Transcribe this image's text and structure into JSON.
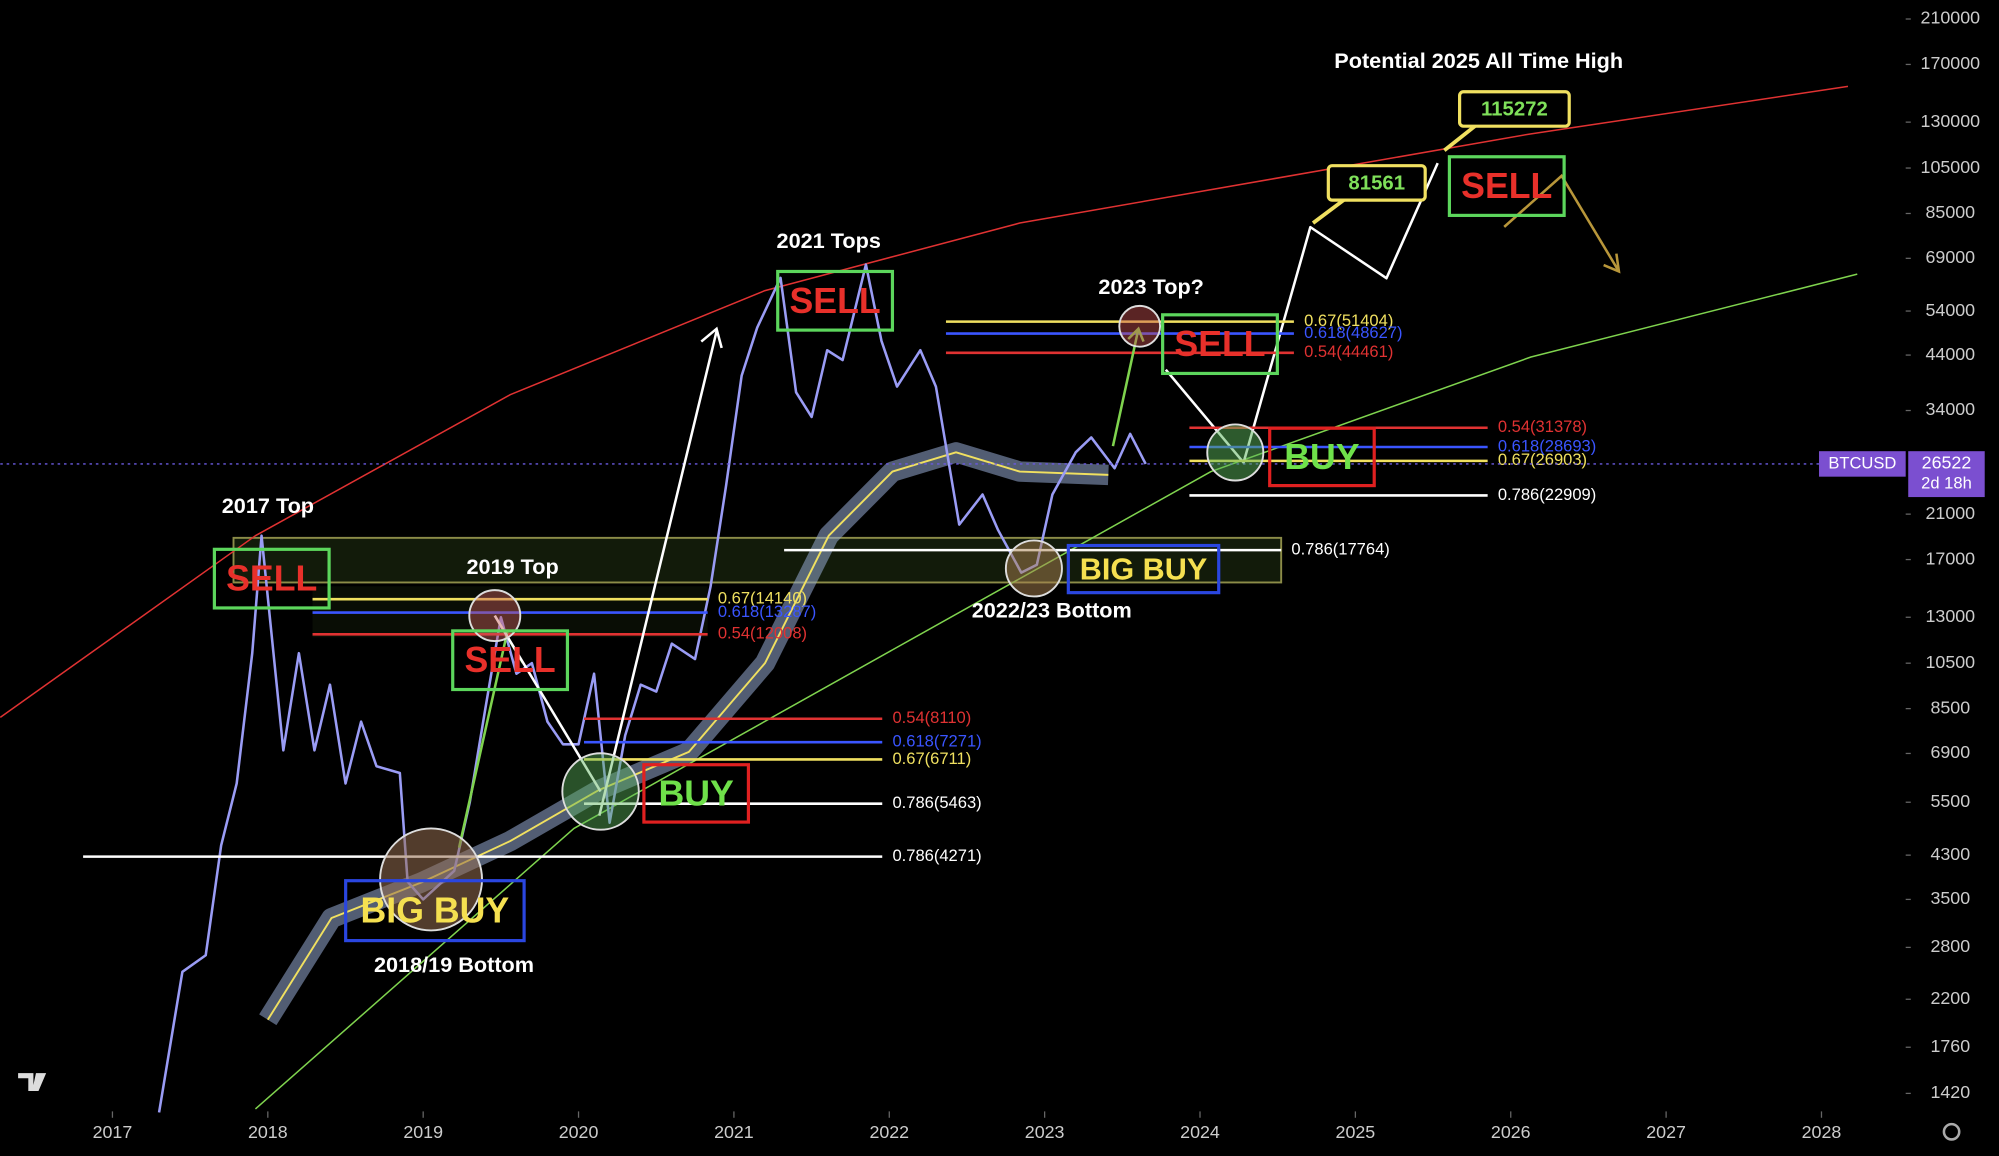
{
  "chart_data": {
    "type": "line",
    "log_scale": true,
    "xlim": [
      2016.278,
      2028.542
    ],
    "ylim": [
      1306,
      229400
    ],
    "xticks": [
      2017,
      2018,
      2019,
      2020,
      2021,
      2022,
      2023,
      2024,
      2025,
      2026,
      2027,
      2028
    ],
    "yticks": [
      1420,
      1760,
      2200,
      2800,
      3500,
      4300,
      5500,
      6900,
      8500,
      10500,
      13000,
      17000,
      21000,
      34000,
      44000,
      54000,
      69000,
      85000,
      105000,
      130000,
      170000,
      210000
    ],
    "series": [
      {
        "color": "#e03232",
        "x": [
          2016.278,
          2017.92,
          2019.56,
          2021.2,
          2022.84,
          2024.48,
          2026.12,
          2028.17
        ],
        "values": [
          8157,
          19000,
          36600,
          59400,
          81300,
          100000,
          123000,
          153500
        ]
      },
      {
        "color": "#7fd34e",
        "x": [
          2017.92,
          2019.97,
          2022.02,
          2024.07,
          2026.13,
          2028.23
        ],
        "values": [
          1321,
          4870,
          11170,
          25600,
          43600,
          64100
        ]
      },
      {
        "color": "#f0e060",
        "x": [
          2018.0,
          2018.41,
          2018.99,
          2019.56,
          2020.13,
          2020.71,
          2021.2,
          2021.61,
          2022.02,
          2022.43,
          2022.84,
          2023.41
        ],
        "values": [
          2000,
          3210,
          3790,
          4590,
          5820,
          6950,
          10500,
          19000,
          25600,
          28000,
          25600,
          25200
        ]
      },
      {
        "color": "#9a9cf5",
        "x": [
          2017.3,
          2017.45,
          2017.6,
          2017.7,
          2017.8,
          2017.9,
          2017.96,
          2018.05,
          2018.1,
          2018.2,
          2018.3,
          2018.4,
          2018.5,
          2018.6,
          2018.7,
          2018.85,
          2018.9,
          2019.0,
          2019.2,
          2019.3,
          2019.4,
          2019.5,
          2019.6,
          2019.7,
          2019.8,
          2019.9,
          2020.0,
          2020.1,
          2020.2,
          2020.3,
          2020.4,
          2020.5,
          2020.6,
          2020.75,
          2020.85,
          2020.95,
          2021.05,
          2021.15,
          2021.3,
          2021.4,
          2021.5,
          2021.6,
          2021.7,
          2021.85,
          2021.95,
          2022.05,
          2022.2,
          2022.3,
          2022.45,
          2022.6,
          2022.7,
          2022.85,
          2022.95,
          2023.05,
          2023.2,
          2023.3,
          2023.45,
          2023.55,
          2023.65
        ],
        "values": [
          1300,
          2500,
          2700,
          4500,
          6000,
          11000,
          19000,
          10000,
          7000,
          11000,
          7000,
          9500,
          6000,
          8000,
          6500,
          6300,
          3800,
          3500,
          4000,
          5500,
          8500,
          13000,
          10000,
          10500,
          8000,
          7200,
          7200,
          10000,
          5000,
          7500,
          9500,
          9200,
          11500,
          10700,
          15000,
          24000,
          40000,
          50000,
          63000,
          37000,
          33000,
          45000,
          43000,
          67000,
          47000,
          38000,
          45000,
          38000,
          20000,
          23000,
          19500,
          16000,
          16600,
          23000,
          28000,
          30000,
          26000,
          30500,
          26522
        ]
      },
      {
        "color": "#ffffff",
        "x": [
          2023.78,
          2024.28,
          2024.71,
          2025.2,
          2025.53
        ],
        "values": [
          41100,
          26700,
          79800,
          62900,
          107400
        ]
      }
    ],
    "levels": [
      {
        "value": 14140,
        "label": "0.67(14140)",
        "color": "#f0e060"
      },
      {
        "value": 13287,
        "label": "0.618(13287)",
        "color": "#3a55ff"
      },
      {
        "value": 12008,
        "label": "0.54(12008)",
        "color": "#e03232"
      },
      {
        "value": 8110,
        "label": "0.54(8110)",
        "color": "#e03232"
      },
      {
        "value": 7271,
        "label": "0.618(7271)",
        "color": "#3a55ff"
      },
      {
        "value": 6711,
        "label": "0.67(6711)",
        "color": "#f0e060"
      },
      {
        "value": 5463,
        "label": "0.786(5463)",
        "color": "#ffffff"
      },
      {
        "value": 4271,
        "label": "0.786(4271)",
        "color": "#ffffff"
      },
      {
        "value": 17764,
        "label": "0.786(17764)",
        "color": "#ffffff"
      },
      {
        "value": 51404,
        "label": "0.67(51404)",
        "color": "#f0e060"
      },
      {
        "value": 48627,
        "label": "0.618(48627)",
        "color": "#3a55ff"
      },
      {
        "value": 44461,
        "label": "0.54(44461)",
        "color": "#e03232"
      },
      {
        "value": 31378,
        "label": "0.54(31378)",
        "color": "#e03232"
      },
      {
        "value": 28693,
        "label": "0.618(28693)",
        "color": "#3a55ff"
      },
      {
        "value": 26903,
        "label": "0.67(26903)",
        "color": "#f0e060"
      },
      {
        "value": 22909,
        "label": "0.786(22909)",
        "color": "#ffffff"
      }
    ],
    "annotations": [
      "2017 Top",
      "2019 Top",
      "2021 Tops",
      "2023 Top?",
      "2018/19 Bottom",
      "2022/23 Bottom",
      "Potential 2025 All Time High"
    ],
    "signals": [
      {
        "text": "SELL",
        "color": "#e8302a",
        "border": "#5cd65c"
      },
      {
        "text": "SELL",
        "color": "#e8302a",
        "border": "#5cd65c"
      },
      {
        "text": "SELL",
        "color": "#e8302a",
        "border": "#5cd65c"
      },
      {
        "text": "SELL",
        "color": "#e8302a",
        "border": "#5cd65c"
      },
      {
        "text": "SELL",
        "color": "#e8302a",
        "border": "#5cd65c"
      },
      {
        "text": "BUY",
        "color": "#6fe04a",
        "border": "#e02020"
      },
      {
        "text": "BUY",
        "color": "#6fe04a",
        "border": "#e02020"
      },
      {
        "text": "BIG BUY",
        "color": "#f5e050",
        "border": "#2a46e0"
      },
      {
        "text": "BIG BUY",
        "color": "#f5e050",
        "border": "#2a46e0"
      }
    ],
    "callouts": [
      {
        "value": 115272
      },
      {
        "value": 81561
      }
    ],
    "price_tag": {
      "symbol": "BTCUSD",
      "value": 26522,
      "countdown": "2d 18h",
      "color": "#7b4fd0"
    }
  }
}
